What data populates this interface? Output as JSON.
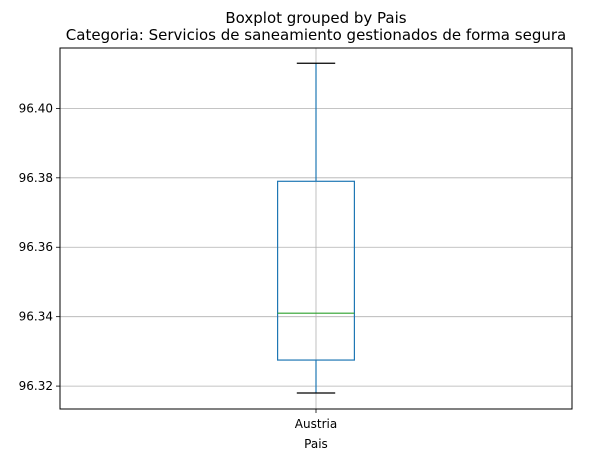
{
  "chart_data": {
    "type": "boxplot",
    "suptitle": "Boxplot grouped by Pais",
    "title": "Categoria: Servicios de saneamiento gestionados de forma segura",
    "xlabel": "Pais",
    "ylabel": "",
    "categories": [
      "Austria"
    ],
    "boxes": [
      {
        "category": "Austria",
        "whislo": 96.318,
        "q1": 96.3275,
        "med": 96.341,
        "q3": 96.379,
        "whishi": 96.413
      }
    ],
    "ylim": [
      96.3134,
      96.4174
    ],
    "yticks": [
      96.32,
      96.34,
      96.36,
      96.38,
      96.4
    ],
    "ytick_labels": [
      "96.32",
      "96.34",
      "96.36",
      "96.38",
      "96.40"
    ],
    "grid": true,
    "colors": {
      "box": "#1f77b4",
      "median": "#2ca02c",
      "whisker": "#1f77b4",
      "cap": "#000000",
      "grid": "#b0b0b0"
    }
  }
}
